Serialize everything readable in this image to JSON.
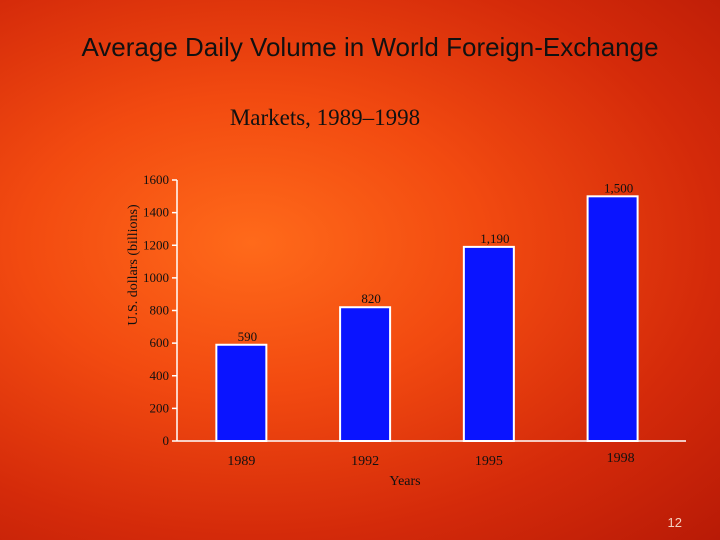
{
  "slide": {
    "title": "Average Daily Volume in World Foreign-Exchange",
    "page_number": "12"
  },
  "chart_data": {
    "type": "bar",
    "title": "Markets, 1989–1998",
    "xlabel": "Years",
    "ylabel": "U.S. dollars (billions)",
    "categories": [
      "1989",
      "1992",
      "1995",
      "1998"
    ],
    "values": [
      590,
      820,
      1190,
      1500
    ],
    "data_labels": [
      "590",
      "820",
      "1,190",
      "1,500"
    ],
    "y_ticks": [
      0,
      200,
      400,
      600,
      800,
      1000,
      1200,
      1400,
      1600
    ],
    "ylim": [
      0,
      1600
    ],
    "grid": false,
    "legend": "none",
    "colors": {
      "bar_fill": "#0a14ff",
      "bar_stroke": "#ffffff",
      "axis": "#ffffff",
      "text": "#111111"
    }
  }
}
